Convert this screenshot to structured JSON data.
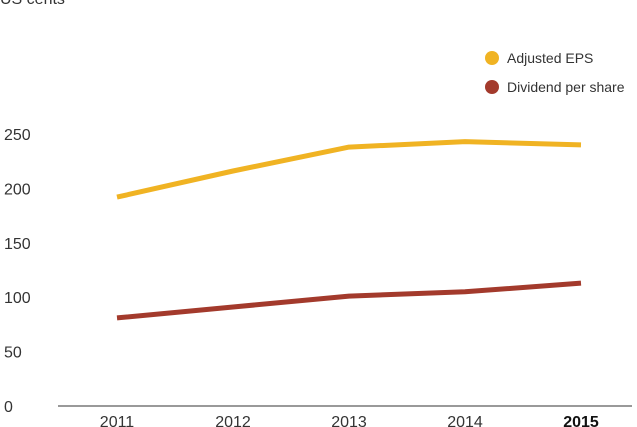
{
  "chart_data": {
    "type": "line",
    "unit_label": "US cents",
    "categories": [
      "2011",
      "2012",
      "2013",
      "2014",
      "2015"
    ],
    "highlight_category": "2015",
    "series": [
      {
        "name": "Adjusted EPS",
        "color": "#f0b323",
        "values": [
          192,
          216,
          238,
          243,
          240
        ]
      },
      {
        "name": "Dividend per share",
        "color": "#a33a2c",
        "values": [
          81,
          91,
          101,
          105,
          113
        ]
      }
    ],
    "yticks": [
      0,
      50,
      100,
      150,
      200,
      250
    ],
    "ylim": [
      0,
      250
    ],
    "grid": false,
    "legend_position": "top-right",
    "axis_color": "#333333"
  }
}
